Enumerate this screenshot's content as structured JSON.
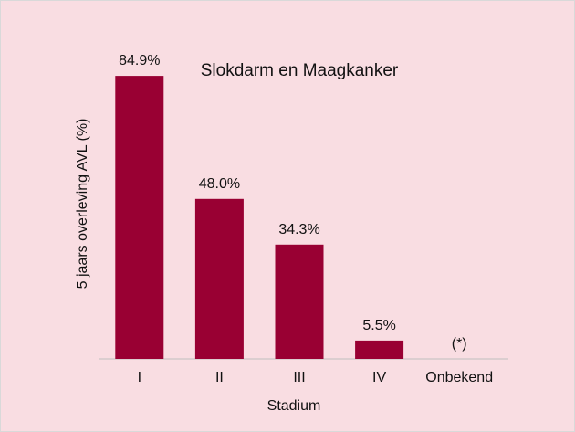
{
  "colors": {
    "background": "#f9dde2",
    "bar": "#990033",
    "axis": "#bfbfbf"
  },
  "chart_data": {
    "type": "bar",
    "title": "Slokdarm en Maagkanker",
    "xlabel": "Stadium",
    "ylabel": "5 jaars overleving AVL (%)",
    "categories": [
      "I",
      "II",
      "III",
      "IV",
      "Onbekend"
    ],
    "values": [
      84.9,
      48.0,
      34.3,
      5.5,
      null
    ],
    "data_labels": [
      "84.9%",
      "48.0%",
      "34.3%",
      "5.5%",
      "(*)"
    ],
    "ylim": [
      0,
      100
    ],
    "grid": false,
    "legend": "none"
  }
}
